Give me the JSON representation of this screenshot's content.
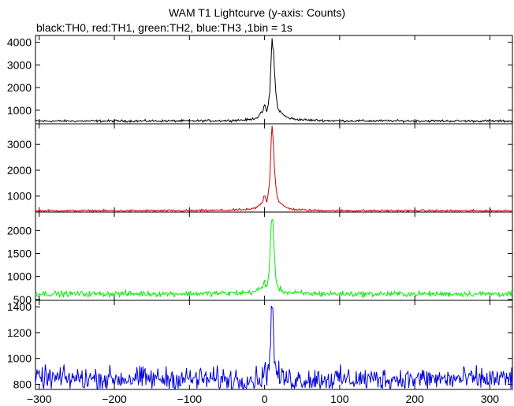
{
  "chart_title": "WAM T1 Lightcurve (y-axis: Counts)",
  "chart_subtitle": "black:TH0, red:TH1, green:TH2, blue:TH3 ,1bin = 1s",
  "chart_data": {
    "type": "line",
    "title": "WAM T1 Lightcurve (y-axis: Counts)",
    "subtitle": "black:TH0, red:TH1, green:TH2, blue:TH3 ,1bin = 1s",
    "xlim": [
      -305,
      330
    ],
    "x_ticks": [
      -300,
      -200,
      -100,
      0,
      100,
      200,
      300
    ],
    "x_tick_labels": [
      "−300",
      "−200",
      "−100",
      "0",
      "100",
      "200",
      "300"
    ],
    "grid": false,
    "legend": "none",
    "panels": [
      {
        "series": "TH0",
        "color": "#000000",
        "ylim": [
          400,
          4300
        ],
        "y_ticks": [
          1000,
          2000,
          3000,
          4000
        ],
        "y_tick_labels": [
          "1000",
          "2000",
          "3000",
          "4000"
        ],
        "baseline": 520,
        "noise": 25,
        "x": [
          -305,
          -100,
          -50,
          -20,
          -10,
          -3,
          0,
          3,
          5,
          7,
          9,
          10,
          11,
          12,
          13,
          15,
          17,
          20,
          25,
          30,
          40,
          60,
          100,
          330
        ],
        "y": [
          520,
          525,
          540,
          580,
          680,
          900,
          1250,
          900,
          1300,
          1800,
          3400,
          4200,
          3900,
          3600,
          2800,
          1800,
          1200,
          950,
          800,
          680,
          600,
          560,
          530,
          520
        ]
      },
      {
        "series": "TH1",
        "color": "#cc0000",
        "ylim": [
          380,
          3800
        ],
        "y_ticks": [
          1000,
          2000,
          3000
        ],
        "y_tick_labels": [
          "1000",
          "2000",
          "3000"
        ],
        "baseline": 430,
        "noise": 20,
        "x": [
          -305,
          -100,
          -50,
          -20,
          -10,
          -3,
          0,
          3,
          5,
          7,
          9,
          10,
          11,
          12,
          13,
          15,
          17,
          20,
          25,
          30,
          40,
          60,
          100,
          330
        ],
        "y": [
          430,
          435,
          450,
          480,
          560,
          750,
          1050,
          800,
          1100,
          1700,
          3300,
          3700,
          3400,
          2900,
          2200,
          1400,
          950,
          750,
          620,
          540,
          480,
          450,
          435,
          430
        ]
      },
      {
        "series": "TH2",
        "color": "#00ee00",
        "ylim": [
          480,
          2400
        ],
        "y_ticks": [
          500,
          1000,
          1500,
          2000
        ],
        "y_tick_labels": [
          "500",
          "1000",
          "1500",
          "2000"
        ],
        "baseline": 620,
        "noise": 30,
        "x": [
          -305,
          -100,
          -50,
          -20,
          -10,
          -3,
          0,
          3,
          5,
          7,
          9,
          10,
          11,
          12,
          13,
          15,
          17,
          20,
          25,
          30,
          40,
          60,
          100,
          330
        ],
        "y": [
          620,
          625,
          635,
          650,
          690,
          760,
          880,
          780,
          950,
          1400,
          2200,
          2350,
          2150,
          1800,
          1400,
          1000,
          820,
          730,
          680,
          650,
          635,
          625,
          620,
          620
        ]
      },
      {
        "series": "TH3",
        "color": "#0000dd",
        "ylim": [
          760,
          1450
        ],
        "y_ticks": [
          800,
          1000,
          1200,
          1400
        ],
        "y_tick_labels": [
          "800",
          "1000",
          "1200",
          "1400"
        ],
        "baseline": 840,
        "noise": 45,
        "x": [
          -305,
          -100,
          -50,
          -20,
          -10,
          -3,
          0,
          3,
          5,
          7,
          9,
          10,
          11,
          12,
          13,
          15,
          17,
          20,
          25,
          30,
          40,
          60,
          100,
          330
        ],
        "y": [
          845,
          842,
          840,
          838,
          842,
          860,
          900,
          880,
          920,
          1050,
          1350,
          1450,
          1320,
          1150,
          1000,
          920,
          880,
          860,
          845,
          840,
          838,
          840,
          840,
          840
        ]
      }
    ]
  }
}
